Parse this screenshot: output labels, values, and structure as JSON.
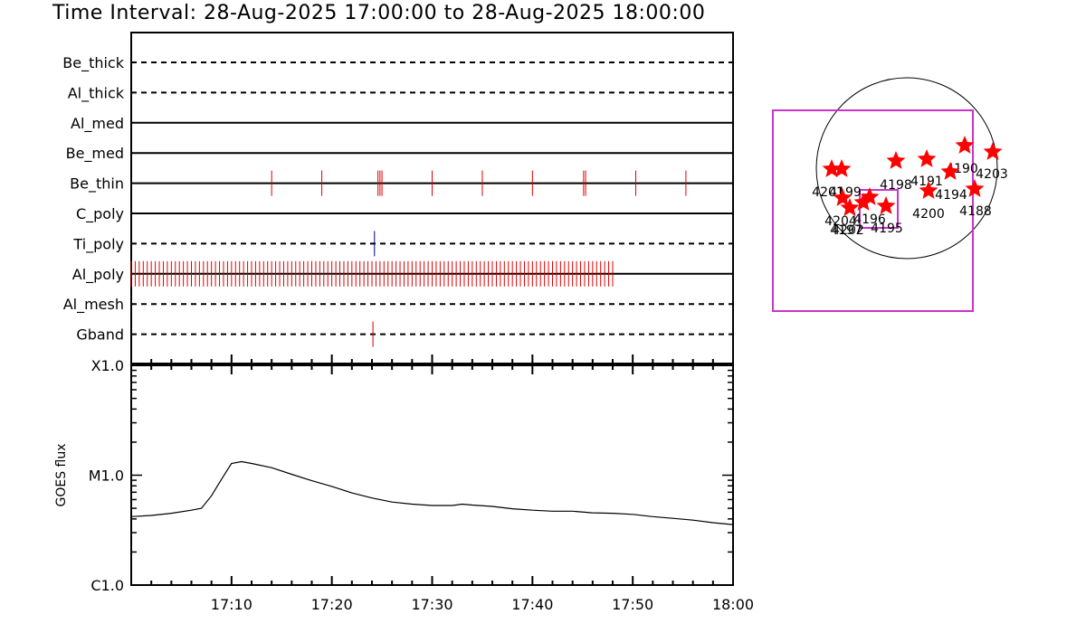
{
  "title": "Time Interval: 28-Aug-2025 17:00:00 to 28-Aug-2025 18:00:00",
  "colors": {
    "event_red": "#e00000",
    "event_blue": "#00008b",
    "box_magenta": "#cc33cc",
    "star_red": "#ff0000"
  },
  "chart_data": [
    {
      "type": "scatter",
      "name": "filter-timeline",
      "x_range": [
        "17:00",
        "18:00"
      ],
      "rows": [
        {
          "label": "Be_thick",
          "line": "dashed",
          "events": []
        },
        {
          "label": "Al_thick",
          "line": "dashed",
          "events": []
        },
        {
          "label": "Al_med",
          "line": "solid",
          "events": []
        },
        {
          "label": "Be_med",
          "line": "solid",
          "events": []
        },
        {
          "label": "Be_thin",
          "line": "solid",
          "color": "red",
          "events": [
            "17:14:00",
            "17:19:00",
            "17:24:36",
            "17:24:48",
            "17:25:00",
            "17:30:00",
            "17:35:00",
            "17:40:00",
            "17:45:06",
            "17:45:18",
            "17:50:18",
            "17:55:18"
          ]
        },
        {
          "label": "C_poly",
          "line": "solid",
          "events": []
        },
        {
          "label": "Ti_poly",
          "line": "dashed",
          "color": "blue",
          "events": [
            "17:24:15"
          ]
        },
        {
          "label": "Al_poly",
          "line": "solid",
          "color": "red",
          "dense_range": [
            "17:00:00",
            "17:48:00"
          ]
        },
        {
          "label": "Al_mesh",
          "line": "dashed",
          "events": []
        },
        {
          "label": "Gband",
          "line": "dashed",
          "color": "red",
          "events": [
            "17:24:06"
          ]
        }
      ]
    },
    {
      "type": "line",
      "name": "goes-flux",
      "ylabel": "GOES flux",
      "yscale": "log",
      "yticks": [
        "C1.0",
        "M1.0",
        "X1.0"
      ],
      "ylim": [
        1e-06,
        0.0001
      ],
      "xticks": [
        "17:10",
        "17:20",
        "17:30",
        "17:40",
        "17:50",
        "18:00"
      ],
      "x_minutes": [
        0,
        2,
        4,
        6,
        7,
        8,
        9,
        10,
        11,
        12,
        14,
        16,
        18,
        20,
        22,
        24,
        26,
        28,
        30,
        32,
        33,
        34,
        36,
        38,
        40,
        42,
        44,
        46,
        48,
        50,
        52,
        54,
        56,
        58,
        60
      ],
      "y_flux": [
        4.2e-06,
        4.3e-06,
        4.5e-06,
        4.8e-06,
        5e-06,
        6.5e-06,
        9.2e-06,
        1.28e-05,
        1.33e-05,
        1.28e-05,
        1.17e-05,
        1.02e-05,
        8.9e-06,
        7.9e-06,
        6.9e-06,
        6.2e-06,
        5.7e-06,
        5.45e-06,
        5.3e-06,
        5.3e-06,
        5.45e-06,
        5.35e-06,
        5.2e-06,
        4.95e-06,
        4.8e-06,
        4.7e-06,
        4.7e-06,
        4.55e-06,
        4.5e-06,
        4.4e-06,
        4.2e-06,
        4.05e-06,
        3.9e-06,
        3.7e-06,
        3.55e-06
      ]
    }
  ],
  "solar_map": {
    "regions": [
      {
        "label": "4190"
      },
      {
        "label": "4203"
      },
      {
        "label": "4198"
      },
      {
        "label": "4191"
      },
      {
        "label": "4194"
      },
      {
        "label": "4200"
      },
      {
        "label": "4188"
      },
      {
        "label": "4199"
      },
      {
        "label": "4201"
      },
      {
        "label": "4204"
      },
      {
        "label": "4197"
      },
      {
        "label": "4196"
      },
      {
        "label": "4195"
      },
      {
        "label": "4202"
      }
    ]
  }
}
